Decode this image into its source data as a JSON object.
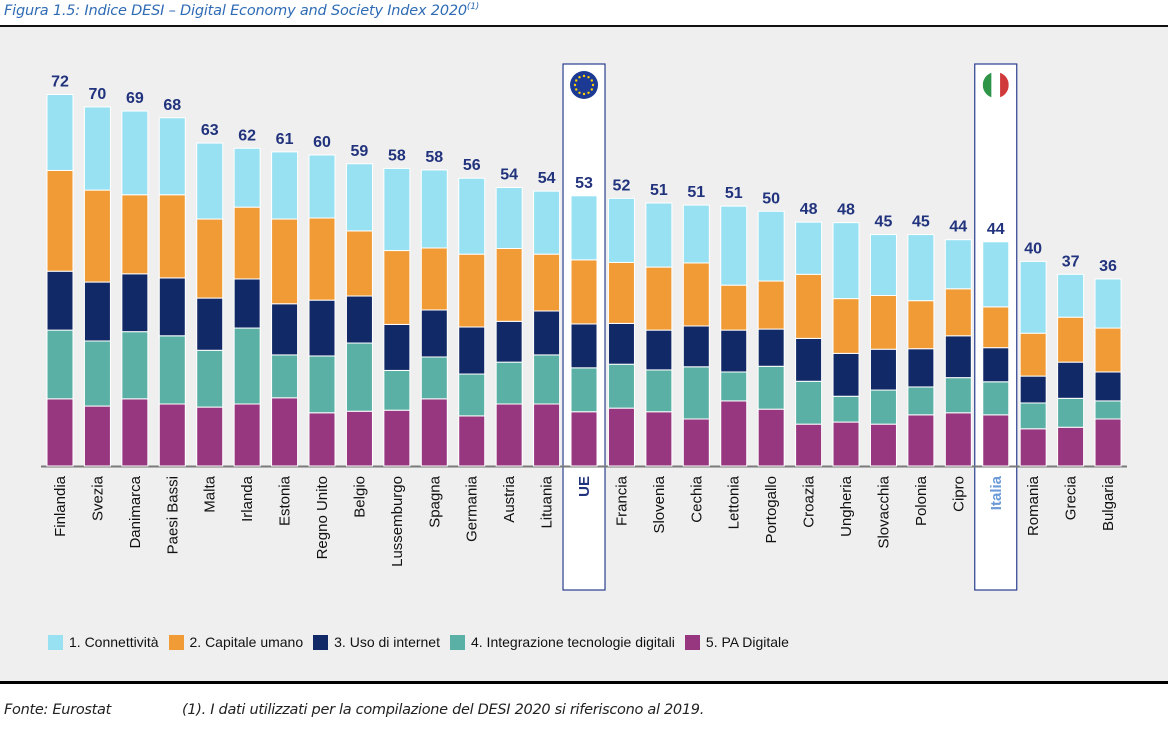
{
  "figure": {
    "title": "Figura 1.5: Indice DESI – Digital Economy and Society Index 2020",
    "title_sup": "(1)",
    "source": "Fonte: Eurostat",
    "note": "(1).  I dati utilizzati per la compilazione del DESI 2020 si riferiscono al 2019."
  },
  "colors": {
    "connettivita": "#98e1f2",
    "capitale_umano": "#f19b37",
    "uso_internet": "#112966",
    "integrazione": "#5ab0a5",
    "pa_digitale": "#973780",
    "value_label": "#22337d",
    "highlight_box": "#2a3e8f",
    "italia_label": "#6b9ad8"
  },
  "chart_data": {
    "type": "bar",
    "stacked": true,
    "title": "Indice DESI – Digital Economy and Society Index 2020",
    "xlabel": "",
    "ylabel": "",
    "ylim": [
      0,
      72
    ],
    "grid": false,
    "legend_position": "bottom",
    "categories": [
      "Finlandia",
      "Svezia",
      "Danimarca",
      "Paesi Bassi",
      "Malta",
      "Irlanda",
      "Estonia",
      "Regno Unito",
      "Belgio",
      "Lussemburgo",
      "Spagna",
      "Germania",
      "Austria",
      "Lituania",
      "UE",
      "Francia",
      "Slovenia",
      "Cechia",
      "Lettonia",
      "Portogallo",
      "Croazia",
      "Ungheria",
      "Slovacchia",
      "Polonia",
      "Cipro",
      "Italia",
      "Romania",
      "Grecia",
      "Bulgaria"
    ],
    "highlighted": [
      "UE",
      "Italia"
    ],
    "totals": [
      72,
      70,
      69,
      68,
      63,
      62,
      61,
      60,
      59,
      58,
      58,
      56,
      54,
      54,
      53,
      52,
      51,
      51,
      51,
      50,
      48,
      48,
      45,
      45,
      44,
      44,
      40,
      37,
      36
    ],
    "series": [
      {
        "name": "5. PA Digitale",
        "key": "pa_digitale",
        "values": [
          13.0,
          11.6,
          13.0,
          12.0,
          11.4,
          12.0,
          13.2,
          10.3,
          10.6,
          10.8,
          13.0,
          9.7,
          12.0,
          12.0,
          10.5,
          11.2,
          10.5,
          9.1,
          12.6,
          11.0,
          8.1,
          8.5,
          8.1,
          9.9,
          10.3,
          9.9,
          7.2,
          7.5,
          9.1
        ]
      },
      {
        "name": "4. Integrazione tecnologie digitali",
        "key": "integrazione",
        "values": [
          13.3,
          12.6,
          13.0,
          13.2,
          11.0,
          14.7,
          8.3,
          11.0,
          13.2,
          7.7,
          8.1,
          8.1,
          8.1,
          9.5,
          8.5,
          8.5,
          8.1,
          10.1,
          5.6,
          8.3,
          8.3,
          5.0,
          6.6,
          5.4,
          6.8,
          6.4,
          5.0,
          5.6,
          3.5
        ]
      },
      {
        "name": "3. Uso di internet",
        "key": "uso_internet",
        "values": [
          11.4,
          11.4,
          11.2,
          11.2,
          10.1,
          9.5,
          9.9,
          10.8,
          9.1,
          8.9,
          9.1,
          9.1,
          7.9,
          8.5,
          8.5,
          7.9,
          7.7,
          7.9,
          8.1,
          7.2,
          8.3,
          8.3,
          7.9,
          7.4,
          8.1,
          6.6,
          5.2,
          7.0,
          5.6
        ]
      },
      {
        "name": "2. Capitale umano",
        "key": "capitale_umano",
        "values": [
          19.5,
          17.8,
          15.3,
          16.1,
          15.3,
          13.9,
          16.4,
          15.9,
          12.6,
          14.3,
          12.0,
          14.1,
          14.1,
          11.0,
          12.4,
          11.8,
          12.2,
          12.2,
          8.7,
          9.3,
          12.4,
          10.6,
          10.4,
          9.3,
          9.1,
          7.9,
          8.3,
          8.7,
          8.5
        ]
      },
      {
        "name": "1. Connettività",
        "key": "connettivita",
        "values": [
          14.7,
          16.1,
          16.2,
          14.9,
          14.7,
          11.4,
          13.0,
          12.2,
          13.0,
          15.9,
          15.1,
          14.7,
          11.8,
          12.2,
          12.4,
          12.4,
          12.4,
          11.2,
          15.3,
          13.5,
          10.1,
          14.7,
          11.8,
          12.8,
          9.5,
          12.6,
          13.9,
          8.3,
          9.5
        ]
      }
    ]
  },
  "legend": [
    {
      "label": "1. Connettività",
      "key": "connettivita"
    },
    {
      "label": "2. Capitale umano",
      "key": "capitale_umano"
    },
    {
      "label": "3. Uso di internet",
      "key": "uso_internet"
    },
    {
      "label": "4. Integrazione tecnologie digitali",
      "key": "integrazione"
    },
    {
      "label": "5. PA Digitale",
      "key": "pa_digitale"
    }
  ],
  "icons": {
    "eu": "eu-flag-icon",
    "italia": "italy-flag-icon"
  }
}
